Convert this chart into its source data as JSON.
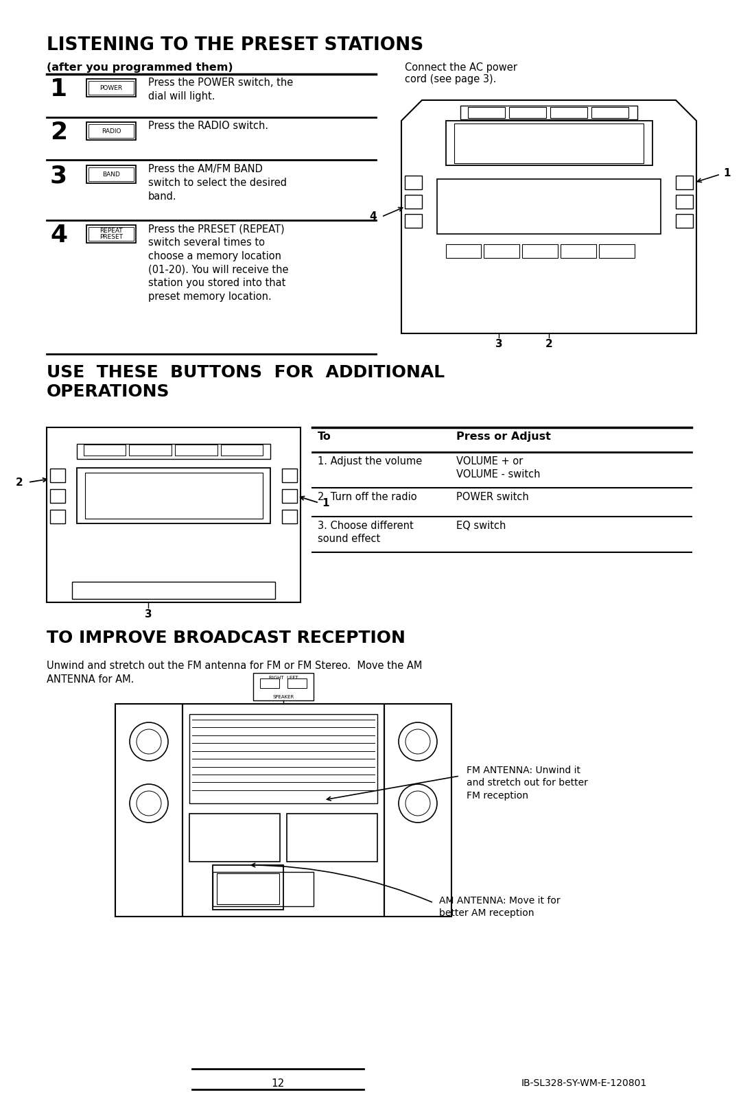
{
  "bg_color": "#ffffff",
  "text_color": "#000000",
  "section1_title": "LISTENING TO THE PRESET STATIONS",
  "section1_subtitle": "(after you programmed them)",
  "steps": [
    {
      "num": "1",
      "button": "POWER",
      "text": "Press the POWER switch, the\ndial will light."
    },
    {
      "num": "2",
      "button": "RADIO",
      "text": "Press the RADIO switch."
    },
    {
      "num": "3",
      "button": "BAND",
      "text": "Press the AM/FM BAND\nswitch to select the desired\nband."
    },
    {
      "num": "4",
      "button": "REPEAT\nPRESET",
      "text": "Press the PRESET (REPEAT)\nswitch several times to\nchoose a memory location\n(01-20). You will receive the\nstation you stored into that\npreset memory location."
    }
  ],
  "right_note": "Connect the AC power\ncord (see page 3).",
  "section2_title": "USE  THESE  BUTTONS  FOR  ADDITIONAL\nOPERATIONS",
  "table_header_col1": "To",
  "table_header_col2": "Press or Adjust",
  "table_rows": [
    [
      "1. Adjust the volume",
      "VOLUME + or\nVOLUME - switch"
    ],
    [
      "2. Turn off the radio",
      "POWER switch"
    ],
    [
      "3. Choose different\nsound effect",
      "EQ switch"
    ]
  ],
  "section3_title": "TO IMPROVE BROADCAST RECEPTION",
  "section3_body": "Unwind and stretch out the FM antenna for FM or FM Stereo.  Move the AM\nANTENNA for AM.",
  "fm_antenna_label": "FM ANTENNA: Unwind it\nand stretch out for better\nFM reception",
  "am_antenna_label": "AM ANTENNA: Move it for\nbetter AM reception",
  "footer_page": "12",
  "footer_code": "IB-SL328-SY-WM-E-120801"
}
